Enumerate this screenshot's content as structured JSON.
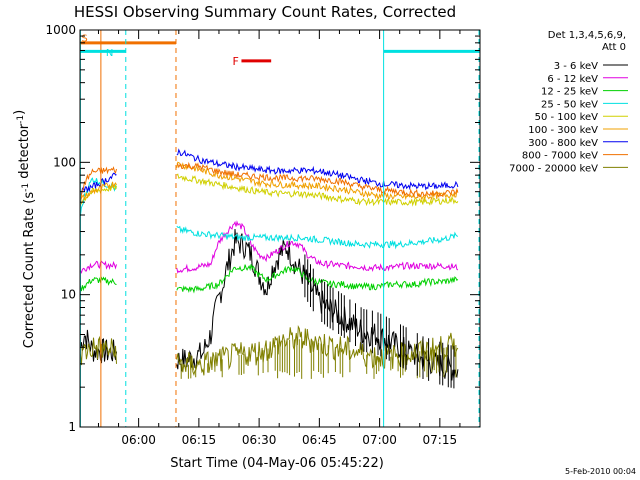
{
  "chart_data": {
    "type": "line",
    "title": "HESSI Observing Summary Count Rates, Corrected",
    "xlabel": "Start Time (04-May-06 05:45:22)",
    "ylabel": "Corrected Count Rate (s⁻¹ detector⁻¹)",
    "ylabel_parts": {
      "prefix": "Corrected Count Rate (s",
      "sup1": "-1",
      "mid": " detector",
      "sup2": "-1",
      "suffix": ")"
    },
    "yscale": "log",
    "ylim": [
      1,
      1000
    ],
    "xlim_min": [
      345.4,
      445
    ],
    "yticks": [
      {
        "value": 1,
        "label": "1"
      },
      {
        "value": 10,
        "label": "10"
      },
      {
        "value": 100,
        "label": "100"
      },
      {
        "value": 1000,
        "label": "1000"
      }
    ],
    "xticks": [
      {
        "value": 360,
        "label": "06:00"
      },
      {
        "value": 375,
        "label": "06:15"
      },
      {
        "value": 390,
        "label": "06:30"
      },
      {
        "value": 405,
        "label": "06:45"
      },
      {
        "value": 420,
        "label": "07:00"
      },
      {
        "value": 435,
        "label": "07:15"
      }
    ],
    "legend_header": [
      "Det 1,3,4,5,6,9,",
      "Att 0"
    ],
    "legend_position": "top-right, outside plot",
    "timestamp": "5-Feb-2010 00:04",
    "gaps": [
      [
        354.5,
        369.5
      ]
    ],
    "series": [
      {
        "name": "3 - 6 keV",
        "color": "#000000",
        "x": [
          345.5,
          346.5,
          348.5,
          370,
          372,
          374,
          376,
          378,
          379,
          381,
          383,
          384,
          386,
          388,
          390,
          392,
          393,
          395,
          397,
          399,
          401,
          403,
          405,
          407,
          410,
          413,
          416,
          419,
          422,
          425,
          428,
          431,
          434,
          437,
          439.5
        ],
        "y": [
          4,
          5,
          3.8,
          3.2,
          3.2,
          3.4,
          3.6,
          5,
          7,
          12,
          20,
          25,
          24,
          20,
          14,
          11,
          15,
          20,
          23,
          17,
          14,
          11,
          9,
          8,
          7,
          6,
          5.2,
          5,
          4.5,
          4,
          3.6,
          3.2,
          3,
          2.8,
          2.7
        ]
      },
      {
        "name": "6 - 12 keV",
        "color": "#e000e0",
        "x": [
          345.5,
          348.5,
          370,
          374,
          378,
          380,
          382,
          384,
          386,
          388,
          390,
          392,
          394,
          396,
          398,
          400,
          402,
          404,
          406,
          408,
          411,
          414,
          417,
          420,
          423,
          426,
          429,
          432,
          435,
          437,
          439.5
        ],
        "y": [
          15,
          17,
          15.5,
          16,
          17,
          25,
          30,
          35,
          32,
          24,
          20,
          19,
          21,
          23,
          25,
          24,
          20,
          18,
          17,
          17,
          16.5,
          16.5,
          16,
          16,
          16,
          16.5,
          16.5,
          16.5,
          16.5,
          16.5,
          16
        ]
      },
      {
        "name": "12 - 25 keV",
        "color": "#00d000",
        "x": [
          345.5,
          348.5,
          370,
          375,
          380,
          384,
          388,
          390,
          392,
          394,
          396,
          398,
          400,
          402,
          405,
          408,
          411,
          414,
          417,
          420,
          423,
          426,
          429,
          432,
          435,
          439.5
        ],
        "y": [
          11,
          13,
          11,
          11,
          12,
          16,
          16,
          14,
          13,
          14,
          15,
          16,
          15,
          13,
          12.5,
          12,
          12,
          11.5,
          11.5,
          11.5,
          12,
          12,
          12,
          12.5,
          12.5,
          13
        ]
      },
      {
        "name": "25 - 50 keV",
        "color": "#00e0e0",
        "x": [
          345.5,
          346.5,
          348.5,
          370,
          375,
          380,
          385,
          390,
          395,
          400,
          405,
          410,
          415,
          420,
          425,
          430,
          435,
          439.5
        ],
        "y": [
          40,
          55,
          75,
          31,
          29,
          28,
          27,
          27,
          27,
          27,
          26,
          25,
          24,
          24,
          24,
          25,
          26,
          28
        ]
      },
      {
        "name": "50 - 100 keV",
        "color": "#d0d000",
        "x": [
          345.5,
          348.5,
          370,
          375,
          380,
          385,
          390,
          395,
          400,
          405,
          410,
          415,
          420,
          425,
          430,
          435,
          439.5
        ],
        "y": [
          50,
          60,
          78,
          73,
          68,
          64,
          60,
          58,
          58,
          56,
          53,
          51,
          50,
          50,
          50,
          51,
          52
        ]
      },
      {
        "name": "100 - 300 keV",
        "color": "#f0a000",
        "x": [
          345.5,
          348.5,
          370,
          375,
          380,
          385,
          390,
          395,
          400,
          405,
          410,
          415,
          420,
          425,
          430,
          435,
          439.5
        ],
        "y": [
          52,
          60,
          97,
          88,
          80,
          75,
          70,
          68,
          67,
          66,
          63,
          59,
          56,
          55,
          55,
          56,
          58
        ]
      },
      {
        "name": "300 - 800 keV",
        "color": "#0000f0",
        "x": [
          345.5,
          346.5,
          348.5,
          370,
          375,
          380,
          385,
          390,
          395,
          400,
          405,
          410,
          415,
          420,
          425,
          430,
          435,
          439.5
        ],
        "y": [
          60,
          62,
          65,
          120,
          105,
          97,
          92,
          88,
          86,
          87,
          86,
          80,
          74,
          69,
          67,
          66,
          66,
          68
        ]
      },
      {
        "name": "800 - 7000 keV",
        "color": "#f07000",
        "x": [
          345.5,
          346.5,
          348.5,
          370,
          375,
          380,
          385,
          390,
          395,
          400,
          405,
          410,
          415,
          420,
          425,
          430,
          435,
          439.5
        ],
        "y": [
          48,
          70,
          85,
          95,
          93,
          85,
          80,
          78,
          76,
          76,
          75,
          72,
          66,
          62,
          60,
          58,
          58,
          60
        ]
      },
      {
        "name": "7000 - 20000 keV",
        "color": "#808000",
        "x": [
          345.5,
          348.5,
          370,
          375,
          380,
          385,
          390,
          393,
          396,
          399,
          402,
          405,
          408,
          411,
          414,
          417,
          420,
          423,
          426,
          429,
          432,
          435,
          439.5
        ],
        "y": [
          3.5,
          4,
          3,
          2.9,
          3.2,
          3.5,
          3.7,
          4,
          4.5,
          4.6,
          4.6,
          4.3,
          4.1,
          3.9,
          3.7,
          3.5,
          3.4,
          3.4,
          3.5,
          3.7,
          3.8,
          3.9,
          4.2
        ]
      },
      {
        "name": "F",
        "color": "#e00000",
        "x": [
          385.6,
          393
        ],
        "y": [
          585,
          585
        ]
      }
    ],
    "markers": [
      {
        "label": "S",
        "color": "#f07000",
        "x": 345.5,
        "y_label": 880,
        "bar": {
          "x": [
            345.5,
            369.3
          ],
          "y": 800
        },
        "vlines": [
          {
            "x": 350.6,
            "dashed": false
          },
          {
            "x": 369.3,
            "dashed": true
          }
        ]
      },
      {
        "label": "N",
        "color": "#00e0e0",
        "x": 351.6,
        "y_label": 680,
        "bars": [
          {
            "x": [
              345.5,
              356.8
            ],
            "y": 690
          },
          {
            "x": [
              421,
              445
            ],
            "y": 690
          }
        ],
        "vlines": [
          {
            "x": 345.5,
            "dashed": false
          },
          {
            "x": 356.8,
            "dashed": true
          },
          {
            "x": 421,
            "dashed": false
          },
          {
            "x": 445,
            "dashed": true
          }
        ]
      }
    ]
  }
}
